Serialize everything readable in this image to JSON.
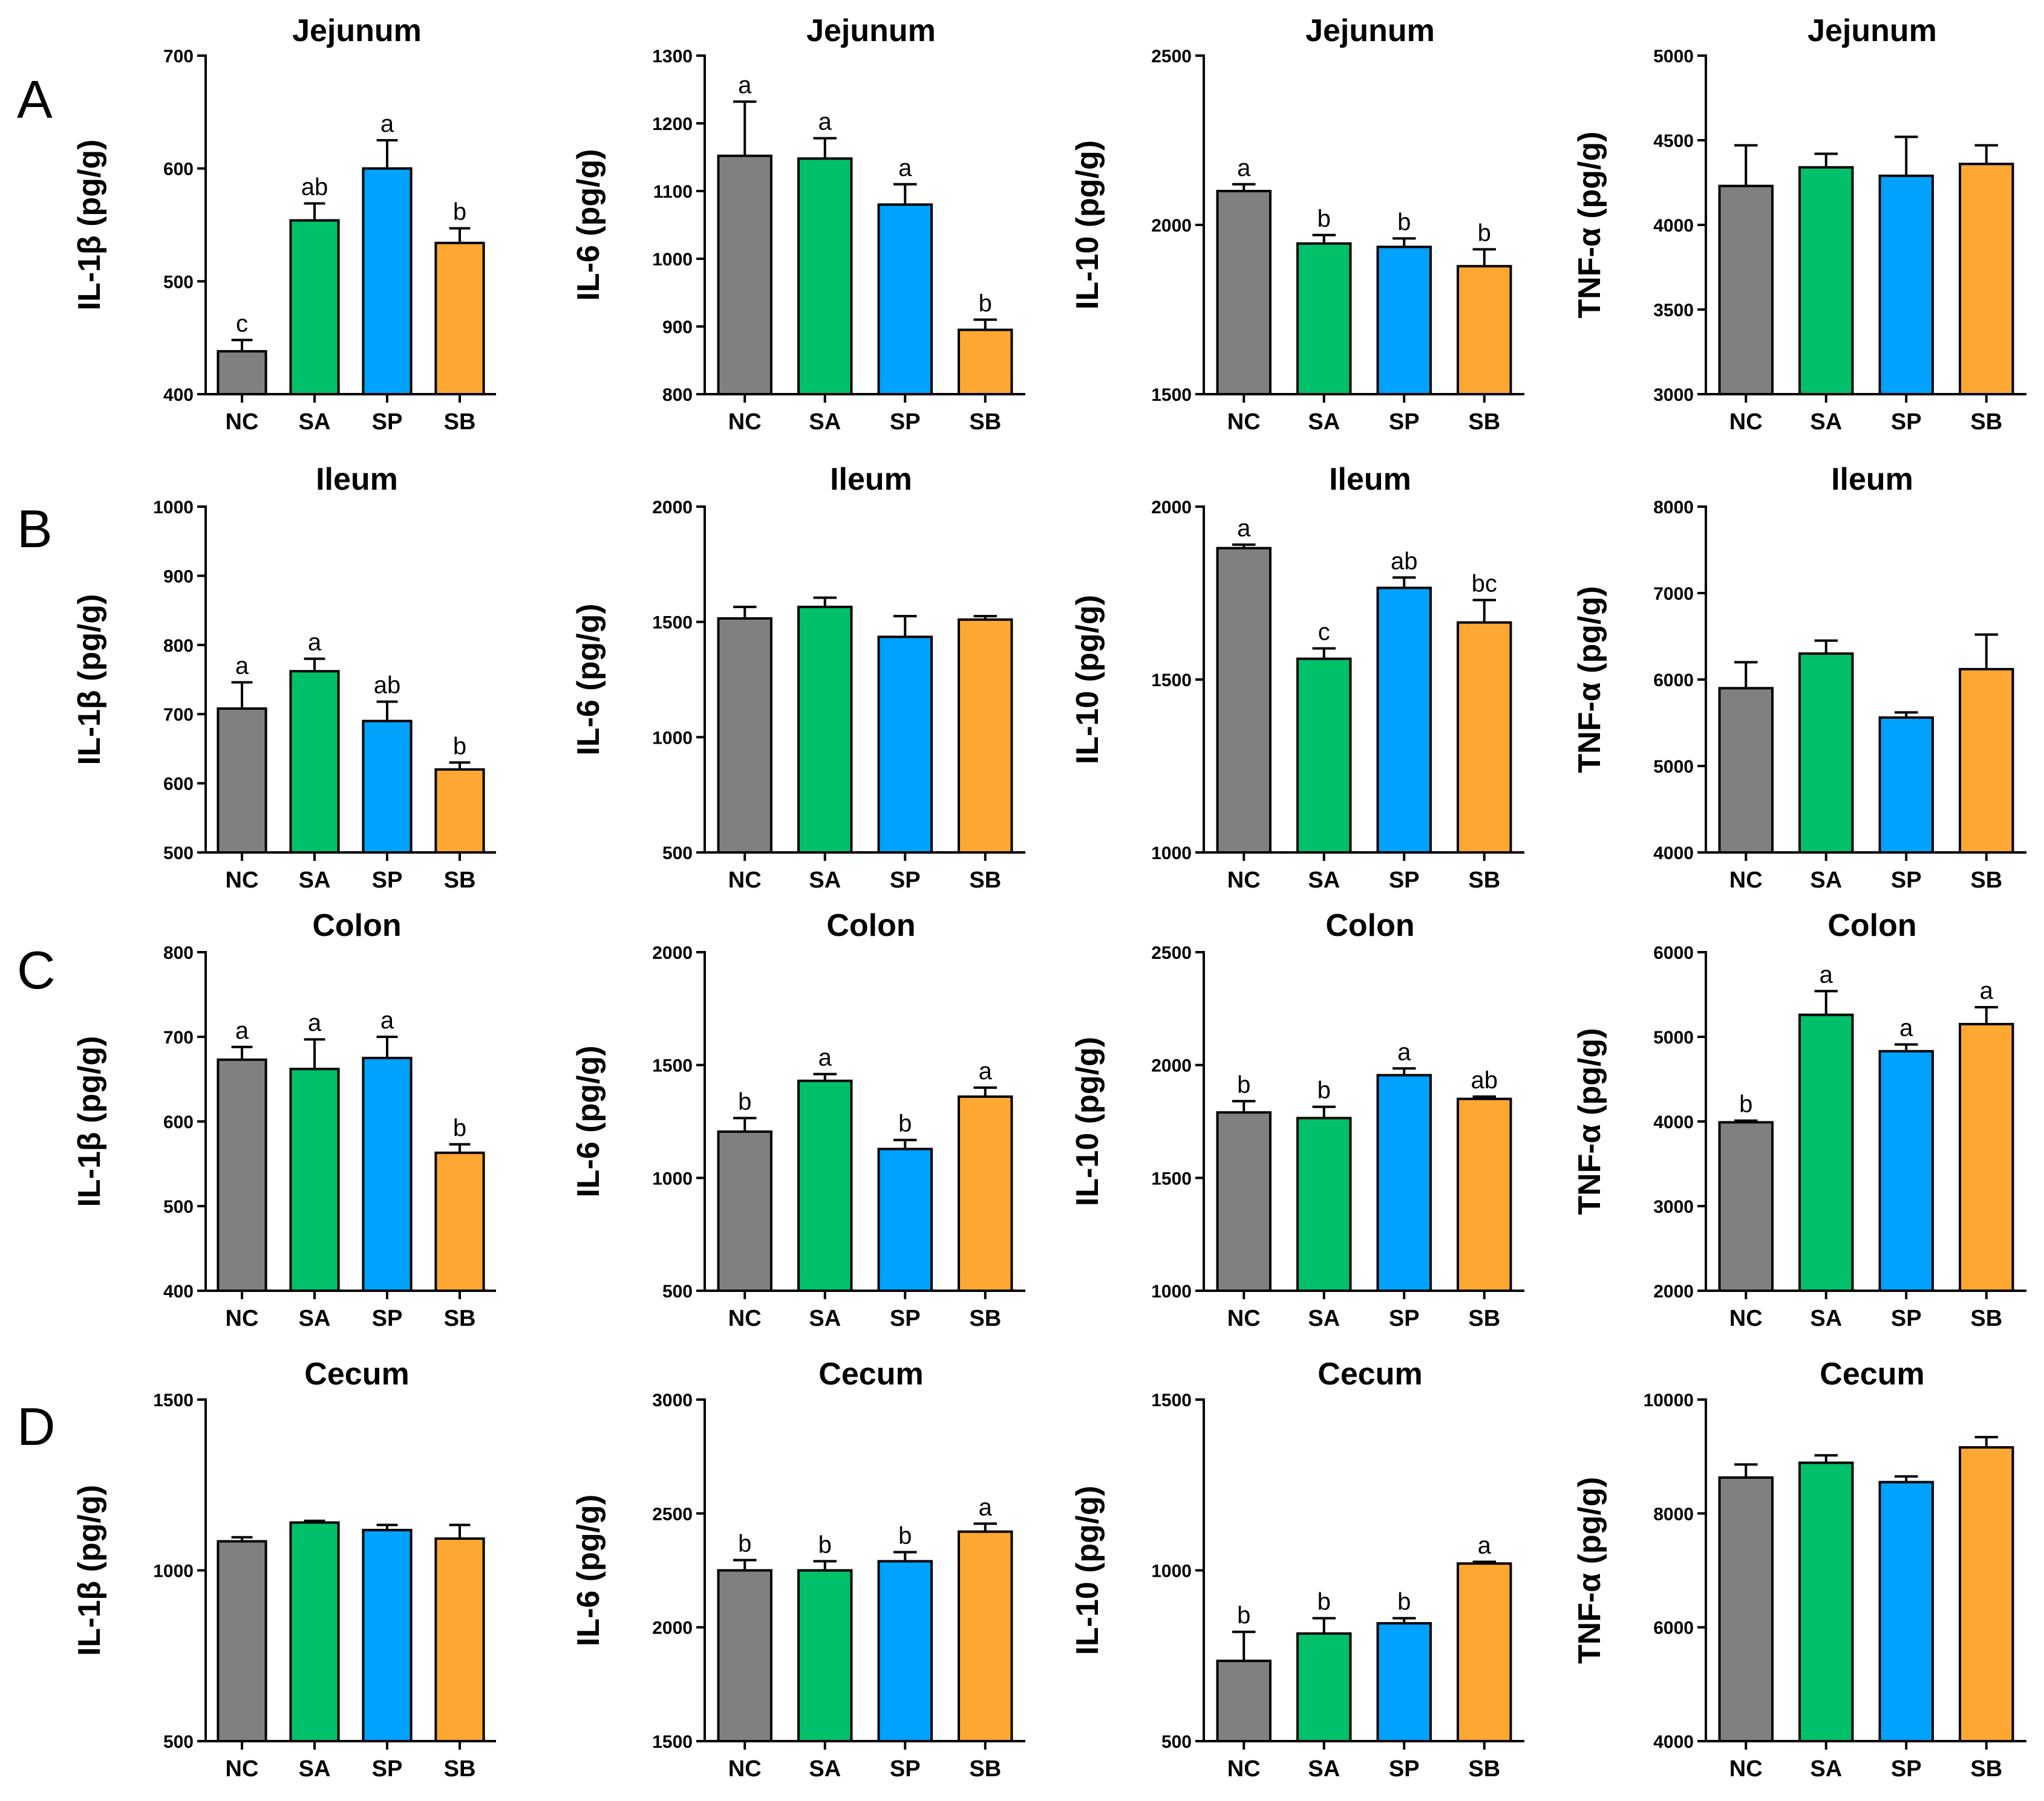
{
  "colors": {
    "NC": "#808080",
    "SA": "#00c06a",
    "SP": "#00a2ff",
    "SB": "#ffa733"
  },
  "categories": [
    "NC",
    "SA",
    "SP",
    "SB"
  ],
  "row_letters": [
    "A",
    "B",
    "C",
    "D"
  ],
  "chart_data": [
    {
      "type": "bar",
      "row": "A",
      "title": "Jejunum",
      "ylabel": "IL-1β (pg/g)",
      "categories": [
        "NC",
        "SA",
        "SP",
        "SB"
      ],
      "values": [
        438,
        554,
        600,
        534
      ],
      "errors": [
        10,
        15,
        25,
        13
      ],
      "labels": [
        "c",
        "ab",
        "a",
        "b"
      ],
      "ylim": [
        400,
        700
      ],
      "yticks": [
        400,
        500,
        600,
        700
      ]
    },
    {
      "type": "bar",
      "row": "A",
      "title": "Jejunum",
      "ylabel": "IL-6 (pg/g)",
      "categories": [
        "NC",
        "SA",
        "SP",
        "SB"
      ],
      "values": [
        1152,
        1148,
        1080,
        895
      ],
      "errors": [
        80,
        30,
        30,
        15
      ],
      "labels": [
        "a",
        "a",
        "a",
        "b"
      ],
      "ylim": [
        800,
        1300
      ],
      "yticks": [
        800,
        900,
        1000,
        1100,
        1200,
        1300
      ]
    },
    {
      "type": "bar",
      "row": "A",
      "title": "Jejunum",
      "ylabel": "IL-10 (pg/g)",
      "categories": [
        "NC",
        "SA",
        "SP",
        "SB"
      ],
      "values": [
        2100,
        1945,
        1935,
        1878
      ],
      "errors": [
        20,
        25,
        25,
        50
      ],
      "labels": [
        "a",
        "b",
        "b",
        "b"
      ],
      "ylim": [
        1500,
        2500
      ],
      "yticks": [
        1500,
        2000,
        2500
      ]
    },
    {
      "type": "bar",
      "row": "A",
      "title": "Jejunum",
      "ylabel": "TNF-α (pg/g)",
      "categories": [
        "NC",
        "SA",
        "SP",
        "SB"
      ],
      "values": [
        4230,
        4340,
        4290,
        4360
      ],
      "errors": [
        240,
        80,
        230,
        110
      ],
      "labels": [
        "",
        "",
        "",
        ""
      ],
      "ylim": [
        3000,
        5000
      ],
      "yticks": [
        3000,
        3500,
        4000,
        4500,
        5000
      ]
    },
    {
      "type": "bar",
      "row": "B",
      "title": "Ileum",
      "ylabel": "IL-1β (pg/g)",
      "categories": [
        "NC",
        "SA",
        "SP",
        "SB"
      ],
      "values": [
        708,
        762,
        690,
        620
      ],
      "errors": [
        38,
        18,
        28,
        10
      ],
      "labels": [
        "a",
        "a",
        "ab",
        "b"
      ],
      "ylim": [
        500,
        1000
      ],
      "yticks": [
        500,
        600,
        700,
        800,
        900,
        1000
      ]
    },
    {
      "type": "bar",
      "row": "B",
      "title": "Ileum",
      "ylabel": "IL-6 (pg/g)",
      "categories": [
        "NC",
        "SA",
        "SP",
        "SB"
      ],
      "values": [
        1515,
        1565,
        1435,
        1510
      ],
      "errors": [
        50,
        40,
        90,
        15
      ],
      "labels": [
        "",
        "",
        "",
        ""
      ],
      "ylim": [
        500,
        2000
      ],
      "yticks": [
        500,
        1000,
        1500,
        2000
      ]
    },
    {
      "type": "bar",
      "row": "B",
      "title": "Ileum",
      "ylabel": "IL-10 (pg/g)",
      "categories": [
        "NC",
        "SA",
        "SP",
        "SB"
      ],
      "values": [
        1880,
        1560,
        1765,
        1665
      ],
      "errors": [
        10,
        30,
        30,
        65
      ],
      "labels": [
        "a",
        "c",
        "ab",
        "bc"
      ],
      "ylim": [
        1000,
        2000
      ],
      "yticks": [
        1000,
        1500,
        2000
      ]
    },
    {
      "type": "bar",
      "row": "B",
      "title": "Ileum",
      "ylabel": "TNF-α (pg/g)",
      "categories": [
        "NC",
        "SA",
        "SP",
        "SB"
      ],
      "values": [
        5900,
        6300,
        5560,
        6120
      ],
      "errors": [
        300,
        150,
        60,
        400
      ],
      "labels": [
        "",
        "",
        "",
        ""
      ],
      "ylim": [
        4000,
        8000
      ],
      "yticks": [
        4000,
        5000,
        6000,
        7000,
        8000
      ]
    },
    {
      "type": "bar",
      "row": "C",
      "title": "Colon",
      "ylabel": "IL-1β (pg/g)",
      "categories": [
        "NC",
        "SA",
        "SP",
        "SB"
      ],
      "values": [
        673,
        662,
        675,
        563
      ],
      "errors": [
        15,
        35,
        25,
        10
      ],
      "labels": [
        "a",
        "a",
        "a",
        "b"
      ],
      "ylim": [
        400,
        800
      ],
      "yticks": [
        400,
        500,
        600,
        700,
        800
      ]
    },
    {
      "type": "bar",
      "row": "C",
      "title": "Colon",
      "ylabel": "IL-6 (pg/g)",
      "categories": [
        "NC",
        "SA",
        "SP",
        "SB"
      ],
      "values": [
        1205,
        1430,
        1128,
        1360
      ],
      "errors": [
        60,
        30,
        40,
        40
      ],
      "labels": [
        "b",
        "a",
        "b",
        "a"
      ],
      "ylim": [
        500,
        2000
      ],
      "yticks": [
        500,
        1000,
        1500,
        2000
      ]
    },
    {
      "type": "bar",
      "row": "C",
      "title": "Colon",
      "ylabel": "IL-10 (pg/g)",
      "categories": [
        "NC",
        "SA",
        "SP",
        "SB"
      ],
      "values": [
        1790,
        1765,
        1955,
        1850
      ],
      "errors": [
        50,
        50,
        30,
        10
      ],
      "labels": [
        "b",
        "b",
        "a",
        "ab"
      ],
      "ylim": [
        1000,
        2500
      ],
      "yticks": [
        1000,
        1500,
        2000,
        2500
      ]
    },
    {
      "type": "bar",
      "row": "C",
      "title": "Colon",
      "ylabel": "TNF-α (pg/g)",
      "categories": [
        "NC",
        "SA",
        "SP",
        "SB"
      ],
      "values": [
        3990,
        5260,
        4830,
        5150
      ],
      "errors": [
        20,
        280,
        80,
        200
      ],
      "labels": [
        "b",
        "a",
        "a",
        "a"
      ],
      "ylim": [
        2000,
        6000
      ],
      "yticks": [
        2000,
        3000,
        4000,
        5000,
        6000
      ]
    },
    {
      "type": "bar",
      "row": "D",
      "title": "Cecum",
      "ylabel": "IL-1β (pg/g)",
      "categories": [
        "NC",
        "SA",
        "SP",
        "SB"
      ],
      "values": [
        1085,
        1140,
        1118,
        1093
      ],
      "errors": [
        12,
        5,
        15,
        40
      ],
      "labels": [
        "",
        "",
        "",
        ""
      ],
      "ylim": [
        500,
        1500
      ],
      "yticks": [
        500,
        1000,
        1500
      ]
    },
    {
      "type": "bar",
      "row": "D",
      "title": "Cecum",
      "ylabel": "IL-6 (pg/g)",
      "categories": [
        "NC",
        "SA",
        "SP",
        "SB"
      ],
      "values": [
        2250,
        2250,
        2290,
        2420
      ],
      "errors": [
        45,
        40,
        40,
        35
      ],
      "labels": [
        "b",
        "b",
        "b",
        "a"
      ],
      "ylim": [
        1500,
        3000
      ],
      "yticks": [
        1500,
        2000,
        2500,
        3000
      ]
    },
    {
      "type": "bar",
      "row": "D",
      "title": "Cecum",
      "ylabel": "IL-10 (pg/g)",
      "categories": [
        "NC",
        "SA",
        "SP",
        "SB"
      ],
      "values": [
        735,
        815,
        845,
        1020
      ],
      "errors": [
        85,
        45,
        15,
        5
      ],
      "labels": [
        "b",
        "b",
        "b",
        "a"
      ],
      "ylim": [
        500,
        1500
      ],
      "yticks": [
        500,
        1000,
        1500
      ]
    },
    {
      "type": "bar",
      "row": "D",
      "title": "Cecum",
      "ylabel": "TNF-α (pg/g)",
      "categories": [
        "NC",
        "SA",
        "SP",
        "SB"
      ],
      "values": [
        8630,
        8890,
        8550,
        9160
      ],
      "errors": [
        230,
        130,
        100,
        180
      ],
      "labels": [
        "",
        "",
        "",
        ""
      ],
      "ylim": [
        4000,
        10000
      ],
      "yticks": [
        4000,
        6000,
        8000,
        10000
      ]
    }
  ]
}
